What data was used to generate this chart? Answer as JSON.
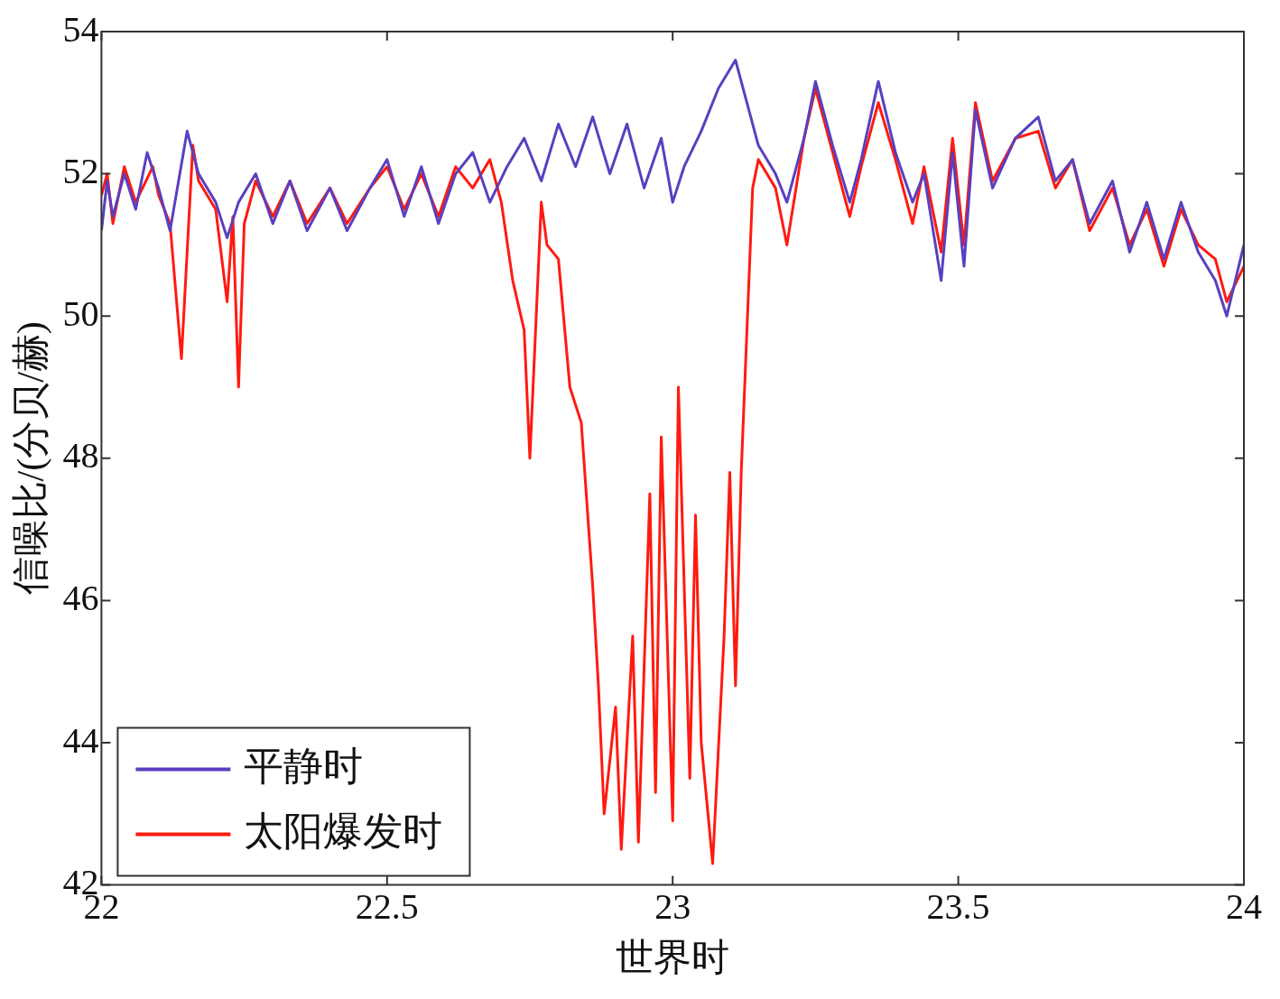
{
  "chart_data": {
    "type": "line",
    "xlabel": "世界时",
    "ylabel": "信噪比/(分贝/赫)",
    "xlim": [
      22,
      24
    ],
    "xticks": [
      22,
      22.5,
      23,
      23.5,
      24
    ],
    "ylim": [
      42,
      54
    ],
    "yticks": [
      42,
      44,
      46,
      48,
      50,
      52,
      54
    ],
    "grid": false,
    "legend": "bottom left",
    "marker": "none",
    "line_style": "solid",
    "series": [
      {
        "name": "平静时",
        "color": "#5a3fc0",
        "x": [
          22.0,
          22.01,
          22.02,
          22.04,
          22.06,
          22.08,
          22.1,
          22.12,
          22.15,
          22.17,
          22.2,
          22.22,
          22.24,
          22.27,
          22.3,
          22.33,
          22.36,
          22.4,
          22.43,
          22.47,
          22.5,
          22.53,
          22.56,
          22.59,
          22.62,
          22.65,
          22.68,
          22.71,
          22.74,
          22.77,
          22.8,
          22.83,
          22.86,
          22.89,
          22.92,
          22.95,
          22.98,
          23.0,
          23.02,
          23.05,
          23.08,
          23.11,
          23.13,
          23.15,
          23.18,
          23.2,
          23.23,
          23.25,
          23.28,
          23.31,
          23.33,
          23.36,
          23.39,
          23.42,
          23.44,
          23.47,
          23.49,
          23.51,
          23.53,
          23.56,
          23.6,
          23.64,
          23.67,
          23.7,
          23.73,
          23.77,
          23.8,
          23.83,
          23.86,
          23.89,
          23.92,
          23.95,
          23.97,
          24.0
        ],
        "values": [
          51.2,
          51.9,
          51.4,
          52.0,
          51.5,
          52.3,
          51.8,
          51.2,
          52.6,
          52.0,
          51.6,
          51.1,
          51.6,
          52.0,
          51.3,
          51.9,
          51.2,
          51.8,
          51.2,
          51.8,
          52.2,
          51.4,
          52.1,
          51.3,
          52.0,
          52.3,
          51.6,
          52.1,
          52.5,
          51.9,
          52.7,
          52.1,
          52.8,
          52.0,
          52.7,
          51.8,
          52.5,
          51.6,
          52.1,
          52.6,
          53.2,
          53.6,
          53.0,
          52.4,
          52.0,
          51.6,
          52.5,
          53.3,
          52.4,
          51.6,
          52.2,
          53.3,
          52.3,
          51.6,
          52.0,
          50.5,
          52.3,
          50.7,
          52.9,
          51.8,
          52.5,
          52.8,
          51.9,
          52.2,
          51.3,
          51.9,
          50.9,
          51.6,
          50.8,
          51.6,
          50.9,
          50.5,
          50.0,
          51.0
        ]
      },
      {
        "name": "太阳爆发时",
        "color": "#ff1a10",
        "x": [
          22.0,
          22.01,
          22.02,
          22.04,
          22.06,
          22.09,
          22.1,
          22.12,
          22.14,
          22.16,
          22.17,
          22.2,
          22.22,
          22.23,
          22.24,
          22.25,
          22.27,
          22.3,
          22.33,
          22.36,
          22.4,
          22.43,
          22.47,
          22.5,
          22.53,
          22.56,
          22.59,
          22.62,
          22.65,
          22.68,
          22.7,
          22.72,
          22.74,
          22.75,
          22.77,
          22.78,
          22.8,
          22.82,
          22.84,
          22.86,
          22.87,
          22.88,
          22.9,
          22.91,
          22.93,
          22.94,
          22.96,
          22.97,
          22.98,
          23.0,
          23.01,
          23.03,
          23.04,
          23.05,
          23.07,
          23.09,
          23.1,
          23.11,
          23.12,
          23.14,
          23.15,
          23.18,
          23.2,
          23.23,
          23.25,
          23.28,
          23.31,
          23.33,
          23.36,
          23.39,
          23.42,
          23.44,
          23.47,
          23.49,
          23.51,
          23.53,
          23.56,
          23.6,
          23.64,
          23.67,
          23.7,
          23.73,
          23.77,
          23.8,
          23.83,
          23.86,
          23.89,
          23.92,
          23.95,
          23.97,
          24.0
        ],
        "values": [
          51.7,
          52.0,
          51.3,
          52.1,
          51.6,
          52.1,
          51.7,
          51.3,
          49.4,
          52.4,
          51.9,
          51.5,
          50.2,
          51.4,
          49.0,
          51.3,
          51.9,
          51.4,
          51.9,
          51.3,
          51.8,
          51.3,
          51.8,
          52.1,
          51.5,
          52.0,
          51.4,
          52.1,
          51.8,
          52.2,
          51.6,
          50.5,
          49.8,
          48.0,
          51.6,
          51.0,
          50.8,
          49.0,
          48.5,
          46.2,
          44.8,
          43.0,
          44.5,
          42.5,
          45.5,
          42.6,
          47.5,
          43.3,
          48.3,
          42.9,
          49.0,
          43.5,
          47.2,
          44.0,
          42.3,
          45.5,
          47.8,
          44.8,
          47.8,
          51.8,
          52.2,
          51.8,
          51.0,
          52.5,
          53.2,
          52.3,
          51.4,
          52.1,
          53.0,
          52.2,
          51.3,
          52.1,
          50.9,
          52.5,
          51.0,
          53.0,
          51.9,
          52.5,
          52.6,
          51.8,
          52.2,
          51.2,
          51.8,
          51.0,
          51.5,
          50.7,
          51.5,
          51.0,
          50.8,
          50.2,
          50.7
        ]
      }
    ]
  }
}
